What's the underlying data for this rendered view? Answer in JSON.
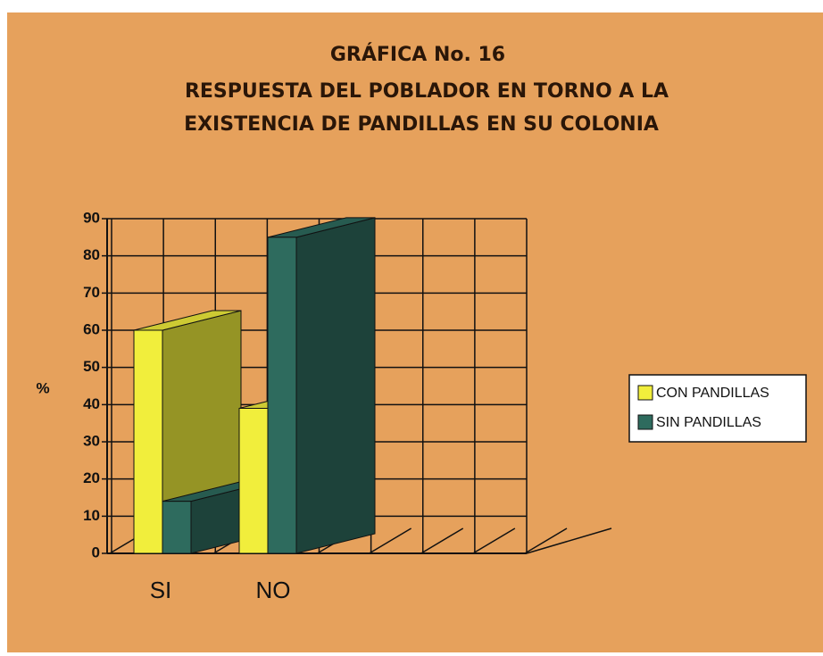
{
  "chart_data": {
    "type": "bar3d",
    "title": [
      "GRÁFICA No. 16",
      "RESPUESTA DEL POBLADOR EN TORNO A LA",
      "EXISTENCIA DE PANDILLAS EN SU COLONIA"
    ],
    "y_label": "%",
    "categories": [
      "SI",
      "NO"
    ],
    "series": [
      {
        "name": "CON PANDILLAS",
        "color": "#f1ee3c",
        "values": [
          60,
          39
        ]
      },
      {
        "name": "SIN PANDILLAS",
        "color": "#2e6b5e",
        "values": [
          14,
          85
        ]
      }
    ],
    "ylim": [
      0,
      90
    ],
    "yticks": [
      0,
      10,
      20,
      30,
      40,
      50,
      60,
      70,
      80,
      90
    ],
    "grid": true,
    "legend": "right"
  }
}
